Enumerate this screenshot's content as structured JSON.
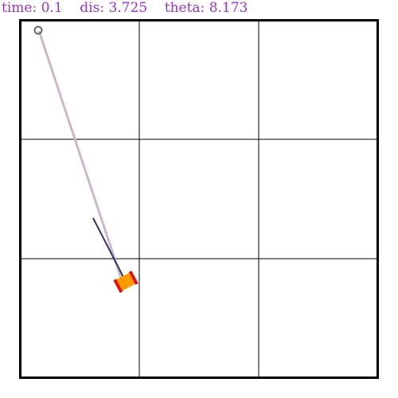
{
  "status": {
    "time_label": "time:",
    "time_value": "0.1",
    "dis_label": "dis:",
    "dis_value": "3.725",
    "theta_label": "theta:",
    "theta_value": "8.173"
  },
  "colors": {
    "status_text": "#9933cc",
    "grid": "#000000",
    "border": "#000000",
    "tether": "#c8b8c8",
    "anchor": "#607060",
    "heading": "#333366",
    "agent_body": "#ff9900",
    "agent_wheels": "#e01010"
  },
  "scene": {
    "grid": "3x3",
    "anchor_icon": "ring-icon",
    "agent_icon": "wheeled-robot-icon"
  }
}
